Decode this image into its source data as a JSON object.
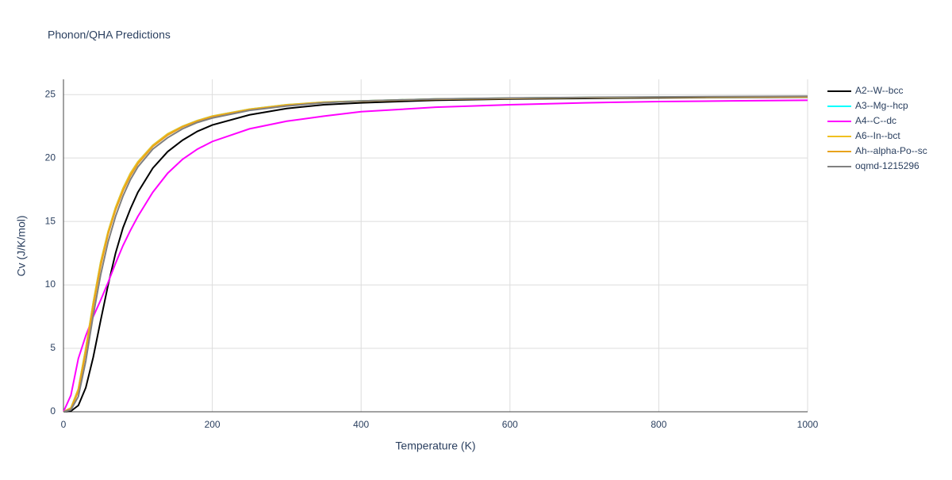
{
  "chart_data": {
    "type": "line",
    "title": "Phonon/QHA Predictions",
    "x_label": "Temperature (K)",
    "y_label": "Cv (J/K/mol)",
    "x": [
      0,
      10,
      20,
      30,
      40,
      50,
      60,
      70,
      80,
      90,
      100,
      120,
      140,
      160,
      180,
      200,
      250,
      300,
      350,
      400,
      500,
      600,
      700,
      800,
      900,
      1000
    ],
    "series": [
      {
        "name": "A2--W--bcc",
        "color": "#000000",
        "values": [
          0,
          0.05,
          0.5,
          1.9,
          4.3,
          7.2,
          10,
          12.5,
          14.5,
          16,
          17.3,
          19.2,
          20.5,
          21.4,
          22.1,
          22.6,
          23.4,
          23.9,
          24.2,
          24.35,
          24.55,
          24.65,
          24.7,
          24.75,
          24.78,
          24.8
        ]
      },
      {
        "name": "A3--Mg--hcp",
        "color": "#00ffff",
        "values": [
          0,
          0.3,
          1.8,
          5,
          8.6,
          11.8,
          14.2,
          16.1,
          17.6,
          18.8,
          19.7,
          21,
          21.9,
          22.5,
          22.95,
          23.3,
          23.85,
          24.2,
          24.4,
          24.5,
          24.65,
          24.72,
          24.77,
          24.8,
          24.82,
          24.83
        ]
      },
      {
        "name": "A4--C--dc",
        "color": "#ff00ff",
        "values": [
          0,
          1.3,
          4.2,
          6,
          7.5,
          8.8,
          10.2,
          11.7,
          13.1,
          14.3,
          15.4,
          17.3,
          18.8,
          19.9,
          20.7,
          21.3,
          22.3,
          22.9,
          23.3,
          23.65,
          24,
          24.2,
          24.35,
          24.45,
          24.5,
          24.55
        ]
      },
      {
        "name": "A6--In--bct",
        "color": "#f0c020",
        "values": [
          0,
          0.3,
          1.8,
          5,
          8.6,
          11.8,
          14.2,
          16.1,
          17.6,
          18.8,
          19.7,
          21,
          21.9,
          22.5,
          22.95,
          23.3,
          23.85,
          24.2,
          24.4,
          24.5,
          24.65,
          24.72,
          24.77,
          24.8,
          24.82,
          24.83
        ]
      },
      {
        "name": "Ah--alpha-Po--sc",
        "color": "#e8a31c",
        "values": [
          0,
          0.25,
          1.6,
          4.7,
          8.3,
          11.5,
          14,
          15.9,
          17.4,
          18.6,
          19.55,
          20.9,
          21.8,
          22.45,
          22.9,
          23.25,
          23.8,
          24.15,
          24.38,
          24.48,
          24.63,
          24.7,
          24.76,
          24.79,
          24.81,
          24.82
        ]
      },
      {
        "name": "oqmd-1215296",
        "color": "#808080",
        "values": [
          0,
          0.15,
          1.2,
          4,
          7.6,
          10.8,
          13.4,
          15.4,
          17,
          18.3,
          19.3,
          20.7,
          21.6,
          22.3,
          22.8,
          23.15,
          23.75,
          24.1,
          24.35,
          24.5,
          24.65,
          24.73,
          24.78,
          24.82,
          24.85,
          24.87
        ]
      }
    ],
    "xlim": [
      0,
      1000
    ],
    "xticks": [
      0,
      200,
      400,
      600,
      800,
      1000
    ],
    "ylim": [
      0,
      26.2
    ],
    "yticks": [
      0,
      5,
      10,
      15,
      20,
      25
    ],
    "grid": true,
    "legend": "right"
  }
}
